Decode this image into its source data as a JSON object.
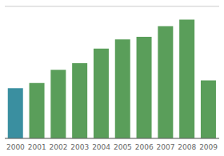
{
  "chart_data": {
    "type": "bar",
    "categories": [
      "2000",
      "2001",
      "2002",
      "2003",
      "2004",
      "2005",
      "2006",
      "2007",
      "2008",
      "2009"
    ],
    "values": [
      38,
      42,
      52,
      57,
      68,
      75,
      77,
      85,
      90,
      44
    ],
    "colors": [
      "#3a8fa0",
      "#5a9e5a",
      "#5a9e5a",
      "#5a9e5a",
      "#5a9e5a",
      "#5a9e5a",
      "#5a9e5a",
      "#5a9e5a",
      "#5a9e5a",
      "#5a9e5a"
    ],
    "ylim": [
      0,
      100
    ],
    "yticks": [
      20,
      40,
      60,
      80,
      100
    ],
    "grid": true,
    "tick_labels": "x"
  }
}
